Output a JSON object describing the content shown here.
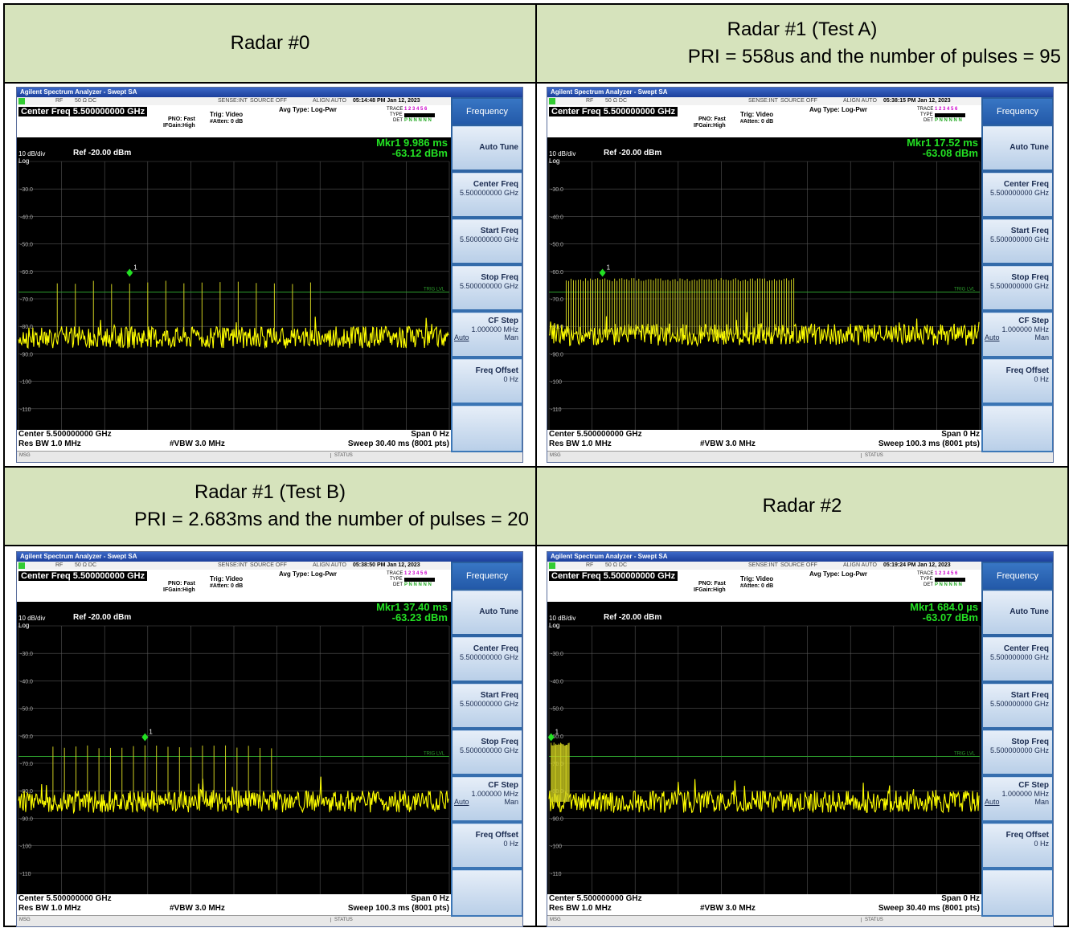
{
  "headers": [
    {
      "line1": "Radar #0",
      "line2": ""
    },
    {
      "line1": "Radar #1 (Test A)",
      "line2": "PRI = 558us and the number of pulses = 95"
    },
    {
      "line1": "Radar #1 (Test B)",
      "line2": "PRI = 2.683ms and the number of pulses = 20"
    },
    {
      "line1": "Radar #2",
      "line2": ""
    }
  ],
  "common": {
    "app_title": "Agilent Spectrum Analyzer - Swept SA",
    "rf": "RF",
    "impedance": "50 Ω  DC",
    "sense": "SENSE:INT",
    "source": "SOURCE OFF",
    "align": "ALIGN AUTO",
    "center_freq_label": "Center Freq 5.500000000 GHz",
    "pno": "PNO: Fast",
    "ifgain": "IFGain:High",
    "trig": "Trig: Video",
    "atten": "#Atten: 0 dB",
    "avg_type": "Avg Type: Log-Pwr",
    "trace": "TRACE",
    "trace_nums": "1 2 3 4 5 6",
    "type": "TYPE",
    "det": "DET",
    "det_val": "P N N N N N",
    "scale": "10 dB/div",
    "log": "Log",
    "ref": "Ref -20.00 dBm",
    "trig_lvl": "TRIG LVL",
    "center_foot": "Center 5.500000000 GHz",
    "res_bw": "Res BW 1.0 MHz",
    "vbw": "#VBW 3.0 MHz",
    "span": "Span 0 Hz",
    "msg": "MSG",
    "status": "STATUS",
    "y_ticks": [
      "-30.0",
      "-40.0",
      "-50.0",
      "-60.0",
      "-70.0",
      "-80.0",
      "-90.0",
      "-100",
      "-110"
    ],
    "softkeys": {
      "menu": "Frequency",
      "auto_tune": "Auto Tune",
      "center_freq": "Center Freq",
      "center_val": "5.500000000 GHz",
      "start_freq": "Start Freq",
      "start_val": "5.500000000 GHz",
      "stop_freq": "Stop Freq",
      "stop_val": "5.500000000 GHz",
      "cf_step": "CF Step",
      "cf_step_val": "1.000000 MHz",
      "auto": "Auto",
      "man": "Man",
      "freq_offset": "Freq Offset",
      "freq_offset_val": "0 Hz"
    }
  },
  "panels": [
    {
      "time": "05:14:48 PM Jan 12, 2023",
      "mkr_label": "Mkr1 9.986 ms",
      "mkr_val": "-63.12 dBm",
      "sweep": "Sweep  30.40 ms (8001 pts)",
      "marker_num": "1"
    },
    {
      "time": "05:38:15 PM Jan 12, 2023",
      "mkr_label": "Mkr1 17.52 ms",
      "mkr_val": "-63.08 dBm",
      "sweep": "Sweep  100.3 ms (8001 pts)",
      "marker_num": "1"
    },
    {
      "time": "05:38:50 PM Jan 12, 2023",
      "mkr_label": "Mkr1 37.40 ms",
      "mkr_val": "-63.23 dBm",
      "sweep": "Sweep  100.3 ms (8001 pts)",
      "marker_num": "1"
    },
    {
      "time": "05:19:24 PM Jan 12, 2023",
      "mkr_label": "Mkr1 684.0 µs",
      "mkr_val": "-63.07 dBm",
      "sweep": "Sweep  30.40 ms (8001 pts)",
      "marker_num": "1"
    }
  ],
  "traces": [
    {
      "pulse_start": 0.09,
      "pulse_spacing": 0.042,
      "pulse_count": 15,
      "pulse_level": -64,
      "marker_index": 4,
      "noise_mean": -84
    },
    {
      "pulse_start": 0.04,
      "pulse_spacing": 0.00562,
      "pulse_count": 95,
      "pulse_level": -63,
      "marker_index": 15,
      "noise_mean": -83
    },
    {
      "pulse_start": 0.08,
      "pulse_spacing": 0.0267,
      "pulse_count": 20,
      "pulse_level": -64,
      "marker_index": 8,
      "noise_mean": -84
    },
    {
      "pulse_start": 0.005,
      "pulse_spacing": 0.0022,
      "pulse_count": 20,
      "pulse_level": -63,
      "marker_index": 0,
      "noise_mean": -84
    }
  ]
}
